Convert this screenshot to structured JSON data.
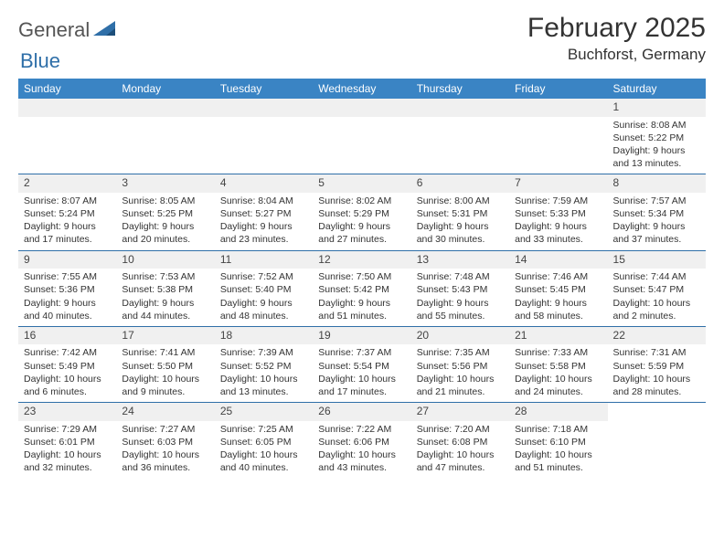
{
  "brand": {
    "part1": "General",
    "part2": "Blue"
  },
  "title": "February 2025",
  "location": "Buchforst, Germany",
  "colors": {
    "header_bg": "#3a84c4",
    "header_text": "#ffffff",
    "rule": "#2f6fa8",
    "daynum_bg": "#f0f0f0",
    "brand_gray": "#555555",
    "brand_blue": "#2f6fa8"
  },
  "weekdays": [
    "Sunday",
    "Monday",
    "Tuesday",
    "Wednesday",
    "Thursday",
    "Friday",
    "Saturday"
  ],
  "weeks": [
    [
      null,
      null,
      null,
      null,
      null,
      null,
      {
        "n": "1",
        "sunrise": "Sunrise: 8:08 AM",
        "sunset": "Sunset: 5:22 PM",
        "day1": "Daylight: 9 hours",
        "day2": "and 13 minutes."
      }
    ],
    [
      {
        "n": "2",
        "sunrise": "Sunrise: 8:07 AM",
        "sunset": "Sunset: 5:24 PM",
        "day1": "Daylight: 9 hours",
        "day2": "and 17 minutes."
      },
      {
        "n": "3",
        "sunrise": "Sunrise: 8:05 AM",
        "sunset": "Sunset: 5:25 PM",
        "day1": "Daylight: 9 hours",
        "day2": "and 20 minutes."
      },
      {
        "n": "4",
        "sunrise": "Sunrise: 8:04 AM",
        "sunset": "Sunset: 5:27 PM",
        "day1": "Daylight: 9 hours",
        "day2": "and 23 minutes."
      },
      {
        "n": "5",
        "sunrise": "Sunrise: 8:02 AM",
        "sunset": "Sunset: 5:29 PM",
        "day1": "Daylight: 9 hours",
        "day2": "and 27 minutes."
      },
      {
        "n": "6",
        "sunrise": "Sunrise: 8:00 AM",
        "sunset": "Sunset: 5:31 PM",
        "day1": "Daylight: 9 hours",
        "day2": "and 30 minutes."
      },
      {
        "n": "7",
        "sunrise": "Sunrise: 7:59 AM",
        "sunset": "Sunset: 5:33 PM",
        "day1": "Daylight: 9 hours",
        "day2": "and 33 minutes."
      },
      {
        "n": "8",
        "sunrise": "Sunrise: 7:57 AM",
        "sunset": "Sunset: 5:34 PM",
        "day1": "Daylight: 9 hours",
        "day2": "and 37 minutes."
      }
    ],
    [
      {
        "n": "9",
        "sunrise": "Sunrise: 7:55 AM",
        "sunset": "Sunset: 5:36 PM",
        "day1": "Daylight: 9 hours",
        "day2": "and 40 minutes."
      },
      {
        "n": "10",
        "sunrise": "Sunrise: 7:53 AM",
        "sunset": "Sunset: 5:38 PM",
        "day1": "Daylight: 9 hours",
        "day2": "and 44 minutes."
      },
      {
        "n": "11",
        "sunrise": "Sunrise: 7:52 AM",
        "sunset": "Sunset: 5:40 PM",
        "day1": "Daylight: 9 hours",
        "day2": "and 48 minutes."
      },
      {
        "n": "12",
        "sunrise": "Sunrise: 7:50 AM",
        "sunset": "Sunset: 5:42 PM",
        "day1": "Daylight: 9 hours",
        "day2": "and 51 minutes."
      },
      {
        "n": "13",
        "sunrise": "Sunrise: 7:48 AM",
        "sunset": "Sunset: 5:43 PM",
        "day1": "Daylight: 9 hours",
        "day2": "and 55 minutes."
      },
      {
        "n": "14",
        "sunrise": "Sunrise: 7:46 AM",
        "sunset": "Sunset: 5:45 PM",
        "day1": "Daylight: 9 hours",
        "day2": "and 58 minutes."
      },
      {
        "n": "15",
        "sunrise": "Sunrise: 7:44 AM",
        "sunset": "Sunset: 5:47 PM",
        "day1": "Daylight: 10 hours",
        "day2": "and 2 minutes."
      }
    ],
    [
      {
        "n": "16",
        "sunrise": "Sunrise: 7:42 AM",
        "sunset": "Sunset: 5:49 PM",
        "day1": "Daylight: 10 hours",
        "day2": "and 6 minutes."
      },
      {
        "n": "17",
        "sunrise": "Sunrise: 7:41 AM",
        "sunset": "Sunset: 5:50 PM",
        "day1": "Daylight: 10 hours",
        "day2": "and 9 minutes."
      },
      {
        "n": "18",
        "sunrise": "Sunrise: 7:39 AM",
        "sunset": "Sunset: 5:52 PM",
        "day1": "Daylight: 10 hours",
        "day2": "and 13 minutes."
      },
      {
        "n": "19",
        "sunrise": "Sunrise: 7:37 AM",
        "sunset": "Sunset: 5:54 PM",
        "day1": "Daylight: 10 hours",
        "day2": "and 17 minutes."
      },
      {
        "n": "20",
        "sunrise": "Sunrise: 7:35 AM",
        "sunset": "Sunset: 5:56 PM",
        "day1": "Daylight: 10 hours",
        "day2": "and 21 minutes."
      },
      {
        "n": "21",
        "sunrise": "Sunrise: 7:33 AM",
        "sunset": "Sunset: 5:58 PM",
        "day1": "Daylight: 10 hours",
        "day2": "and 24 minutes."
      },
      {
        "n": "22",
        "sunrise": "Sunrise: 7:31 AM",
        "sunset": "Sunset: 5:59 PM",
        "day1": "Daylight: 10 hours",
        "day2": "and 28 minutes."
      }
    ],
    [
      {
        "n": "23",
        "sunrise": "Sunrise: 7:29 AM",
        "sunset": "Sunset: 6:01 PM",
        "day1": "Daylight: 10 hours",
        "day2": "and 32 minutes."
      },
      {
        "n": "24",
        "sunrise": "Sunrise: 7:27 AM",
        "sunset": "Sunset: 6:03 PM",
        "day1": "Daylight: 10 hours",
        "day2": "and 36 minutes."
      },
      {
        "n": "25",
        "sunrise": "Sunrise: 7:25 AM",
        "sunset": "Sunset: 6:05 PM",
        "day1": "Daylight: 10 hours",
        "day2": "and 40 minutes."
      },
      {
        "n": "26",
        "sunrise": "Sunrise: 7:22 AM",
        "sunset": "Sunset: 6:06 PM",
        "day1": "Daylight: 10 hours",
        "day2": "and 43 minutes."
      },
      {
        "n": "27",
        "sunrise": "Sunrise: 7:20 AM",
        "sunset": "Sunset: 6:08 PM",
        "day1": "Daylight: 10 hours",
        "day2": "and 47 minutes."
      },
      {
        "n": "28",
        "sunrise": "Sunrise: 7:18 AM",
        "sunset": "Sunset: 6:10 PM",
        "day1": "Daylight: 10 hours",
        "day2": "and 51 minutes."
      },
      null
    ]
  ]
}
